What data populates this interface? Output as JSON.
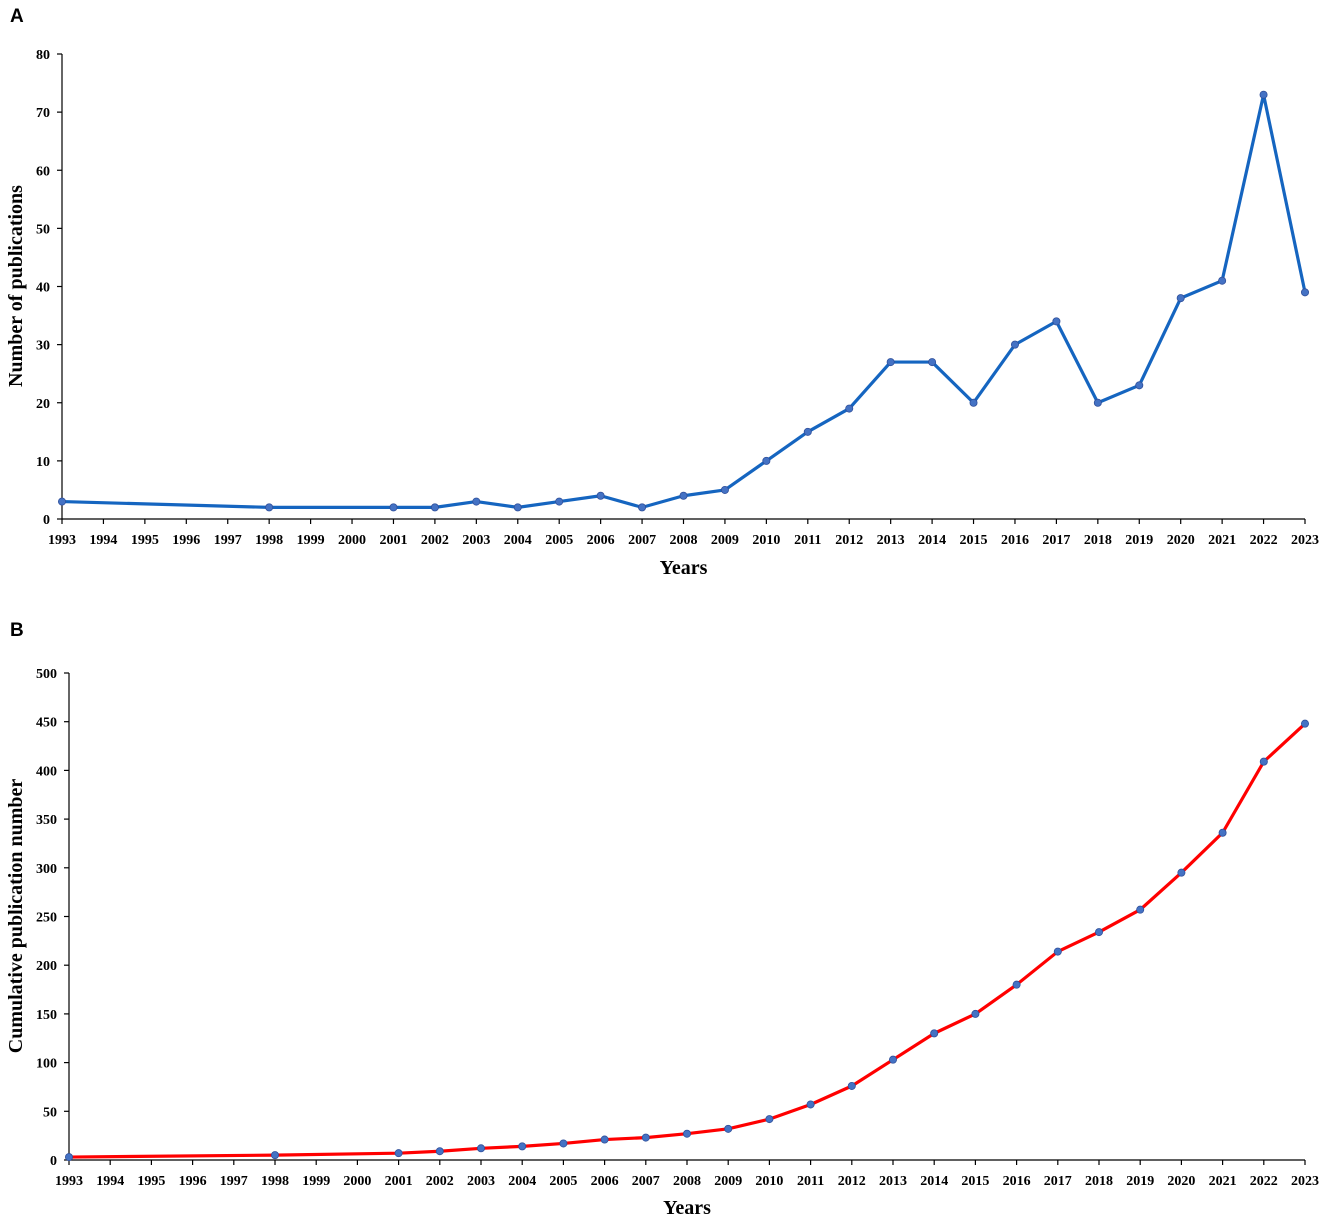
{
  "chart_data": [
    {
      "panel": "A",
      "type": "line",
      "xlabel": "Years",
      "ylabel": "Number of publications",
      "ylim": [
        0,
        80
      ],
      "yticks": [
        0,
        10,
        20,
        30,
        40,
        50,
        60,
        70,
        80
      ],
      "categories": [
        "1993",
        "1994",
        "1995",
        "1996",
        "1997",
        "1998",
        "1999",
        "2000",
        "2001",
        "2002",
        "2003",
        "2004",
        "2005",
        "2006",
        "2007",
        "2008",
        "2009",
        "2010",
        "2011",
        "2012",
        "2013",
        "2014",
        "2015",
        "2016",
        "2017",
        "2018",
        "2019",
        "2020",
        "2021",
        "2022",
        "2023"
      ],
      "points": [
        {
          "x": "1993",
          "y": 3
        },
        {
          "x": "1998",
          "y": 2
        },
        {
          "x": "2001",
          "y": 2
        },
        {
          "x": "2002",
          "y": 2
        },
        {
          "x": "2003",
          "y": 3
        },
        {
          "x": "2004",
          "y": 2
        },
        {
          "x": "2005",
          "y": 3
        },
        {
          "x": "2006",
          "y": 4
        },
        {
          "x": "2007",
          "y": 2
        },
        {
          "x": "2008",
          "y": 4
        },
        {
          "x": "2009",
          "y": 5
        },
        {
          "x": "2010",
          "y": 10
        },
        {
          "x": "2011",
          "y": 15
        },
        {
          "x": "2012",
          "y": 19
        },
        {
          "x": "2013",
          "y": 27
        },
        {
          "x": "2014",
          "y": 27
        },
        {
          "x": "2015",
          "y": 20
        },
        {
          "x": "2016",
          "y": 30
        },
        {
          "x": "2017",
          "y": 34
        },
        {
          "x": "2018",
          "y": 20
        },
        {
          "x": "2019",
          "y": 23
        },
        {
          "x": "2020",
          "y": 38
        },
        {
          "x": "2021",
          "y": 41
        },
        {
          "x": "2022",
          "y": 73
        },
        {
          "x": "2023",
          "y": 39
        }
      ],
      "line_color": "#1565c0",
      "marker_color": "#4472c4",
      "grid": false
    },
    {
      "panel": "B",
      "type": "line",
      "xlabel": "Years",
      "ylabel": "Cumulative publication number",
      "ylim": [
        0,
        500
      ],
      "yticks": [
        0,
        50,
        100,
        150,
        200,
        250,
        300,
        350,
        400,
        450,
        500
      ],
      "categories": [
        "1993",
        "1994",
        "1995",
        "1996",
        "1997",
        "1998",
        "1999",
        "2000",
        "2001",
        "2002",
        "2003",
        "2004",
        "2005",
        "2006",
        "2007",
        "2008",
        "2009",
        "2010",
        "2011",
        "2012",
        "2013",
        "2014",
        "2015",
        "2016",
        "2017",
        "2018",
        "2019",
        "2020",
        "2021",
        "2022",
        "2023"
      ],
      "points": [
        {
          "x": "1993",
          "y": 3
        },
        {
          "x": "1998",
          "y": 5
        },
        {
          "x": "2001",
          "y": 7
        },
        {
          "x": "2002",
          "y": 9
        },
        {
          "x": "2003",
          "y": 12
        },
        {
          "x": "2004",
          "y": 14
        },
        {
          "x": "2005",
          "y": 17
        },
        {
          "x": "2006",
          "y": 21
        },
        {
          "x": "2007",
          "y": 23
        },
        {
          "x": "2008",
          "y": 27
        },
        {
          "x": "2009",
          "y": 32
        },
        {
          "x": "2010",
          "y": 42
        },
        {
          "x": "2011",
          "y": 57
        },
        {
          "x": "2012",
          "y": 76
        },
        {
          "x": "2013",
          "y": 103
        },
        {
          "x": "2014",
          "y": 130
        },
        {
          "x": "2015",
          "y": 150
        },
        {
          "x": "2016",
          "y": 180
        },
        {
          "x": "2017",
          "y": 214
        },
        {
          "x": "2018",
          "y": 234
        },
        {
          "x": "2019",
          "y": 257
        },
        {
          "x": "2020",
          "y": 295
        },
        {
          "x": "2021",
          "y": 336
        },
        {
          "x": "2022",
          "y": 409
        },
        {
          "x": "2023",
          "y": 448
        }
      ],
      "line_color": "#ff0000",
      "marker_color": "#4472c4",
      "grid": false
    }
  ]
}
